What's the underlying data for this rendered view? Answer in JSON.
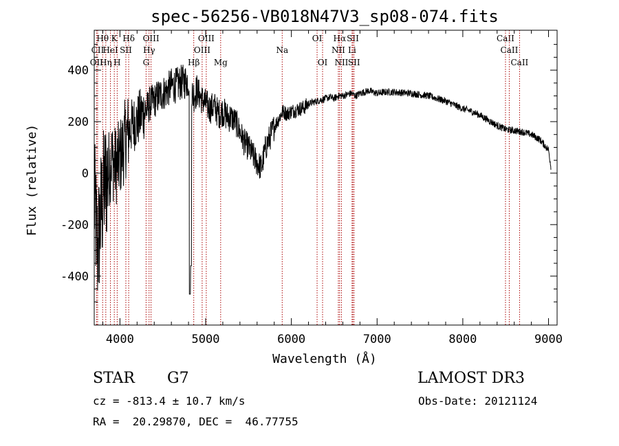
{
  "chart_data": {
    "type": "line",
    "title": "spec-56256-VB018N47V3_sp08-074.fits",
    "xlabel": "Wavelength (Å)",
    "ylabel": "Flux (relative)",
    "xlim": [
      3700,
      9100
    ],
    "ylim": [
      -590,
      555
    ],
    "xticks": [
      4000,
      5000,
      6000,
      7000,
      8000,
      9000
    ],
    "yticks": [
      -400,
      -200,
      0,
      200,
      400
    ],
    "grid": false,
    "line_color": "#000000",
    "marker_color": "#aa0000",
    "spectral_lines": [
      {
        "name": "Hθ",
        "x": 3798,
        "row": 0
      },
      {
        "name": "CII",
        "x": 3740,
        "row": 1
      },
      {
        "name": "OII",
        "x": 3727,
        "row": 2
      },
      {
        "name": "Hη",
        "x": 3835,
        "row": 2
      },
      {
        "name": "HeI",
        "x": 3889,
        "row": 1
      },
      {
        "name": "K",
        "x": 3934,
        "row": 0
      },
      {
        "name": "H",
        "x": 3968,
        "row": 2
      },
      {
        "name": "SII",
        "x": 4069,
        "row": 1
      },
      {
        "name": "Hδ",
        "x": 4102,
        "row": 0
      },
      {
        "name": "OIII",
        "x": 4363,
        "row": 0
      },
      {
        "name": "Hγ",
        "x": 4340,
        "row": 1
      },
      {
        "name": "G",
        "x": 4305,
        "row": 2
      },
      {
        "name": "Hβ",
        "x": 4861,
        "row": 2
      },
      {
        "name": "OIII",
        "x": 5007,
        "row": 0
      },
      {
        "name": "OIII",
        "x": 4959,
        "row": 1
      },
      {
        "name": "Mg",
        "x": 5175,
        "row": 2
      },
      {
        "name": "Na",
        "x": 5893,
        "row": 1
      },
      {
        "name": "OI",
        "x": 6300,
        "row": 0
      },
      {
        "name": "OI",
        "x": 6364,
        "row": 2
      },
      {
        "name": "Hα",
        "x": 6563,
        "row": 0
      },
      {
        "name": "NII",
        "x": 6548,
        "row": 1
      },
      {
        "name": "NII",
        "x": 6584,
        "row": 2
      },
      {
        "name": "SII",
        "x": 6717,
        "row": 0
      },
      {
        "name": "Li",
        "x": 6708,
        "row": 1
      },
      {
        "name": "SII",
        "x": 6731,
        "row": 2
      },
      {
        "name": "CaII",
        "x": 8498,
        "row": 0
      },
      {
        "name": "CaII",
        "x": 8542,
        "row": 1
      },
      {
        "name": "CaII",
        "x": 8662,
        "row": 2
      }
    ],
    "series": [
      {
        "x": [
          3700,
          3740,
          3780,
          3820,
          3860,
          3900,
          3940,
          3980,
          4020,
          4060,
          4100,
          4150,
          4200,
          4250,
          4300,
          4350,
          4400,
          4450,
          4500,
          4550,
          4600,
          4650,
          4700,
          4750,
          4800,
          4850,
          4900,
          4950,
          5000,
          5050,
          5100,
          5150,
          5200,
          5250,
          5300,
          5350,
          5400,
          5450,
          5500,
          5550,
          5600,
          5650,
          5700,
          5750,
          5800,
          5850,
          5900,
          5950,
          6000,
          6050,
          6100,
          6150,
          6200,
          6250,
          6300,
          6350,
          6400,
          6450,
          6500,
          6550,
          6600,
          6650,
          6700,
          6750,
          6800,
          6850,
          6900,
          6950,
          7000,
          7100,
          7200,
          7300,
          7400,
          7500,
          7600,
          7700,
          7800,
          7900,
          8000,
          8100,
          8200,
          8300,
          8400,
          8500,
          8600,
          8700,
          8800,
          8900,
          9000,
          9030
        ],
        "y": [
          -100,
          -300,
          -150,
          -50,
          0,
          60,
          30,
          40,
          80,
          130,
          160,
          190,
          200,
          230,
          240,
          270,
          280,
          300,
          310,
          320,
          340,
          340,
          350,
          355,
          360,
          300,
          320,
          290,
          270,
          250,
          260,
          230,
          240,
          220,
          215,
          200,
          160,
          120,
          100,
          70,
          40,
          20,
          100,
          140,
          180,
          210,
          240,
          230,
          240,
          245,
          250,
          255,
          270,
          275,
          280,
          285,
          290,
          295,
          290,
          300,
          300,
          305,
          310,
          300,
          310,
          315,
          320,
          315,
          310,
          315,
          315,
          312,
          310,
          305,
          300,
          290,
          280,
          265,
          250,
          240,
          225,
          205,
          185,
          170,
          165,
          160,
          150,
          130,
          90,
          20
        ]
      }
    ]
  },
  "footer": {
    "object_class": "STAR",
    "subclass": "G7",
    "survey": "LAMOST DR3",
    "cz": "cz = -813.4 ± 10.7 km/s",
    "obs_date": "Obs-Date: 20121124",
    "radec": "RA =  20.29870, DEC =  46.77755"
  }
}
